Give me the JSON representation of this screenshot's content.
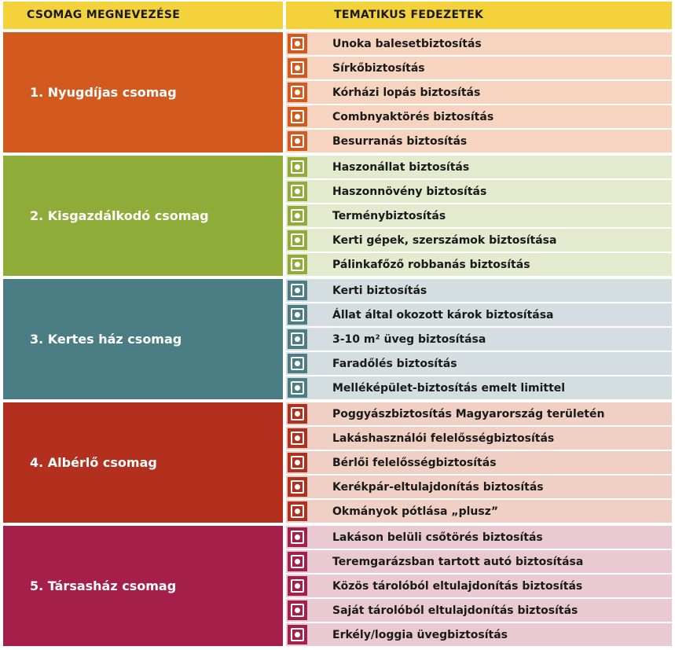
{
  "header": {
    "col1": "CSOMAG MEGNEVEZÉSE",
    "col2": "TEMATIKUS FEDEZETEK"
  },
  "groups": [
    {
      "name": "1. Nyugdíjas csomag",
      "items": [
        "Unoka balesetbiztosítás",
        "Sírkőbiztosítás",
        "Kórházi lopás biztosítás",
        "Combnyaktörés biztosítás",
        "Besurranás biztosítás"
      ]
    },
    {
      "name": "2. Kisgazdálkodó csomag",
      "items": [
        "Haszonállat biztosítás",
        "Haszonnövény biztosítás",
        "Terménybiztosítás",
        "Kerti gépek, szerszámok biztosítása",
        "Pálinkafőző robbanás biztosítás"
      ]
    },
    {
      "name": "3. Kertes ház csomag",
      "items": [
        "Kerti biztosítás",
        "Állat által okozott károk biztosítása",
        "3-10 m² üveg biztosítása",
        "Faradőlés biztosítás",
        "Melléképület-biztosítás emelt limittel"
      ]
    },
    {
      "name": "4. Albérlő csomag",
      "items": [
        "Poggyászbiztosítás Magyarország területén",
        "Lakáshasználói felelősségbiztosítás",
        "Bérlői felelősségbiztosítás",
        "Kerékpár-eltulajdonítás biztosítás",
        "Okmányok pótlása „plusz”"
      ]
    },
    {
      "name": "5. Társasház csomag",
      "items": [
        "Lakáson belüli csőtörés biztosítás",
        "Teremgarázsban tartott autó biztosítása",
        "Közös tárolóból eltulajdonítás biztosítás",
        "Saját tárolóból eltulajdonítás biztosítás",
        "Erkély/loggia üvegbiztosítás"
      ]
    }
  ]
}
